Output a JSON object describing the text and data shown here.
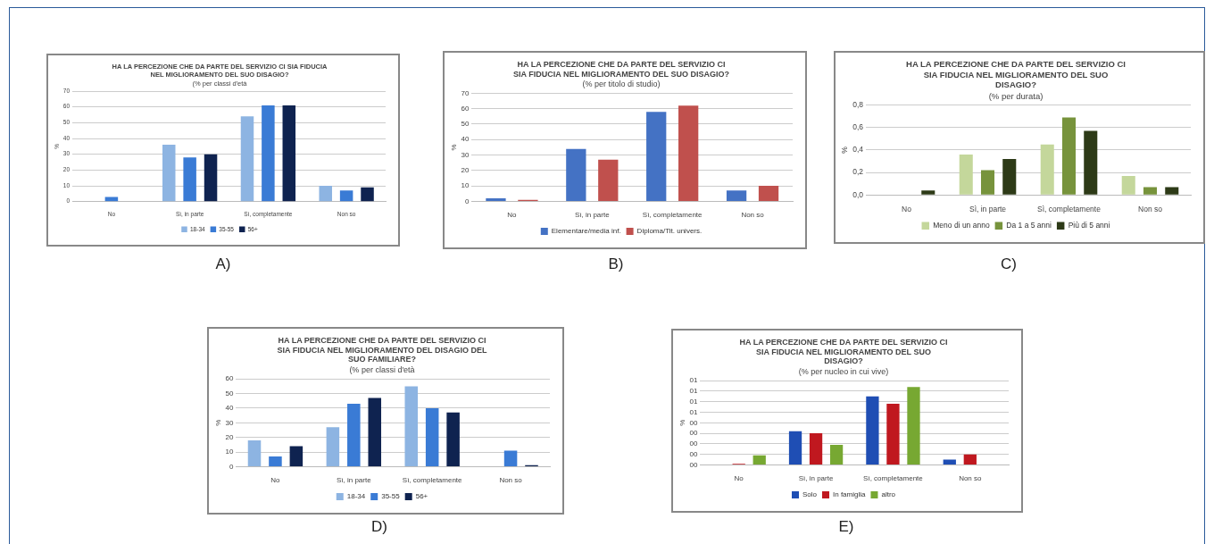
{
  "chart_data": [
    {
      "type": "bar",
      "title": "HA LA PERCEZIONE CHE DA PARTE DEL SERVIZIO CI SIA FIDUCIA NEL MIGLIORAMENTO DEL SUO DISAGIO?",
      "subtitle": "(% per classi d'età",
      "ylabel": "%",
      "categories": [
        "No",
        "Sì, in parte",
        "Sì, completamente",
        "Non so"
      ],
      "series": [
        {
          "name": "18-34",
          "color": "#8db4e2",
          "values": [
            0,
            36,
            54,
            10
          ]
        },
        {
          "name": "35-55",
          "color": "#3a7bd5",
          "values": [
            3,
            28,
            61,
            7
          ]
        },
        {
          "name": "56+",
          "color": "#0f2350",
          "values": [
            0,
            30,
            61,
            9
          ]
        }
      ],
      "ylim": [
        0,
        70
      ],
      "yticks": [
        0,
        10,
        20,
        30,
        40,
        50,
        60,
        70
      ],
      "grid": "y",
      "legend": "bottom",
      "annotations": [
        "A)"
      ]
    },
    {
      "type": "bar",
      "title": "HA LA PERCEZIONE CHE DA PARTE DEL SERVIZIO CI SIA FIDUCIA NEL MIGLIORAMENTO DEL SUO DISAGIO?",
      "subtitle": "(% per titolo di studio)",
      "ylabel": "%",
      "categories": [
        "No",
        "Sì, in parte",
        "Sì, completamente",
        "Non so"
      ],
      "series": [
        {
          "name": "Elementare/media inf.",
          "color": "#4472c4",
          "values": [
            2,
            34,
            58,
            7
          ]
        },
        {
          "name": "Diploma/Tit. univers.",
          "color": "#c0504d",
          "values": [
            1,
            27,
            62,
            10
          ]
        }
      ],
      "ylim": [
        0,
        70
      ],
      "yticks": [
        0,
        10,
        20,
        30,
        40,
        50,
        60,
        70
      ],
      "grid": "y",
      "legend": "bottom",
      "annotations": [
        "B)"
      ]
    },
    {
      "type": "bar",
      "title": "HA LA PERCEZIONE CHE DA PARTE DEL SERVIZIO CI SIA FIDUCIA NEL MIGLIORAMENTO DEL SUO DISAGIO?",
      "subtitle": "(% per durata)",
      "ylabel": "%",
      "categories": [
        "No",
        "Sì, in parte",
        "Sì, completamente",
        "Non so"
      ],
      "series": [
        {
          "name": "Meno di un anno",
          "color": "#c4d79b",
          "values": [
            0,
            0.36,
            0.45,
            0.17
          ]
        },
        {
          "name": "Da 1 a 5 anni",
          "color": "#77933c",
          "values": [
            0,
            0.22,
            0.69,
            0.07
          ]
        },
        {
          "name": "Più di 5 anni",
          "color": "#2d3a17",
          "values": [
            0.04,
            0.32,
            0.57,
            0.07
          ]
        }
      ],
      "ylim": [
        0,
        0.8
      ],
      "yticks": [
        {
          "value": 0,
          "label": "0,0"
        },
        {
          "value": 0.2,
          "label": "0,2"
        },
        {
          "value": 0.4,
          "label": "0,4"
        },
        {
          "value": 0.6,
          "label": "0,6"
        },
        {
          "value": 0.8,
          "label": "0,8"
        }
      ],
      "grid": "y",
      "legend": "bottom",
      "annotations": [
        "C)"
      ]
    },
    {
      "type": "bar",
      "title": "HA LA PERCEZIONE CHE DA PARTE DEL SERVIZIO CI SIA FIDUCIA NEL MIGLIORAMENTO DEL DISAGIO DEL SUO FAMILIARE?",
      "subtitle": "(% per classi d'età",
      "ylabel": "%",
      "categories": [
        "No",
        "Sì, in parte",
        "Sì, completamente",
        "Non so"
      ],
      "series": [
        {
          "name": "18-34",
          "color": "#8db4e2",
          "values": [
            18,
            27,
            55,
            0
          ]
        },
        {
          "name": "35-55",
          "color": "#3a7bd5",
          "values": [
            7,
            43,
            40,
            11
          ]
        },
        {
          "name": "56+",
          "color": "#0f2350",
          "values": [
            14,
            47,
            37,
            1
          ]
        }
      ],
      "ylim": [
        0,
        60
      ],
      "yticks": [
        0,
        10,
        20,
        30,
        40,
        50,
        60
      ],
      "grid": "y",
      "legend": "bottom",
      "annotations": [
        "D)"
      ]
    },
    {
      "type": "bar",
      "title": "HA LA PERCEZIONE CHE DA PARTE DEL SERVIZIO CI SIA FIDUCIA NEL MIGLIORAMENTO DEL SUO DISAGIO?",
      "subtitle": "(% per nucleo in cui vive)",
      "ylabel": "%",
      "categories": [
        "No",
        "Sì, in parte",
        "Sì, completamente",
        "Non so"
      ],
      "series": [
        {
          "name": "Solo",
          "color": "#1f4eb4",
          "values": [
            0,
            0.32,
            0.65,
            0.05
          ]
        },
        {
          "name": "In famiglia",
          "color": "#c0181f",
          "values": [
            0.01,
            0.3,
            0.58,
            0.1
          ]
        },
        {
          "name": "altro",
          "color": "#77a832",
          "values": [
            0.09,
            0.19,
            0.74,
            0
          ]
        }
      ],
      "ylim": [
        0,
        0.8
      ],
      "yticks": [
        {
          "value": 0,
          "label": "00"
        },
        {
          "value": 0.1,
          "label": "00"
        },
        {
          "value": 0.2,
          "label": "00"
        },
        {
          "value": 0.3,
          "label": "00"
        },
        {
          "value": 0.4,
          "label": "00"
        },
        {
          "value": 0.5,
          "label": "01"
        },
        {
          "value": 0.6,
          "label": "01"
        },
        {
          "value": 0.7,
          "label": "01"
        },
        {
          "value": 0.8,
          "label": "01"
        }
      ],
      "grid": "y",
      "legend": "bottom",
      "annotations": [
        "E)"
      ]
    }
  ]
}
